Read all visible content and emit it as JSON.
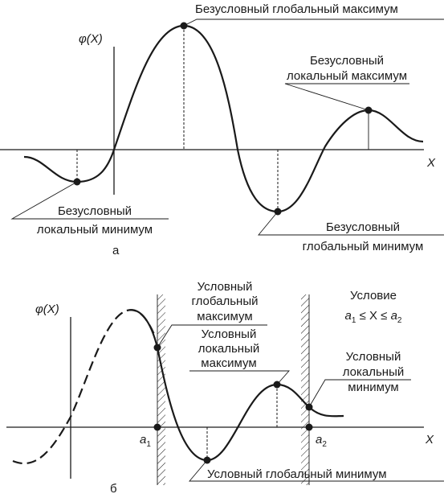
{
  "diagram_a": {
    "y_axis_label": "φ(X)",
    "x_axis_label": "X",
    "caption": "а",
    "global_max_label": "Безусловный глобальный максимум",
    "local_max_label": [
      "Безусловный",
      "локальный максимум"
    ],
    "local_min_label": [
      "Безусловный",
      "локальный минимум"
    ],
    "global_min_label": [
      "Безусловный",
      "глобальный минимум"
    ]
  },
  "diagram_b": {
    "y_axis_label": "φ(X)",
    "x_axis_label": "X",
    "caption": "б",
    "a1_label": "a",
    "a1_sub": "1",
    "a2_label": "a",
    "a2_sub": "2",
    "condition_title": "Условие",
    "condition_expr": [
      "a",
      "1",
      " ≤ X ≤ ",
      "a",
      "2"
    ],
    "cond_global_max_label": [
      "Условный",
      "глобальный",
      "максимум"
    ],
    "cond_local_max_label": [
      "Условный",
      "локальный",
      "максимум"
    ],
    "cond_local_min_label": [
      "Условный",
      "локальный",
      "минимум"
    ],
    "cond_global_min_label": "Условный глобальный минимум"
  }
}
